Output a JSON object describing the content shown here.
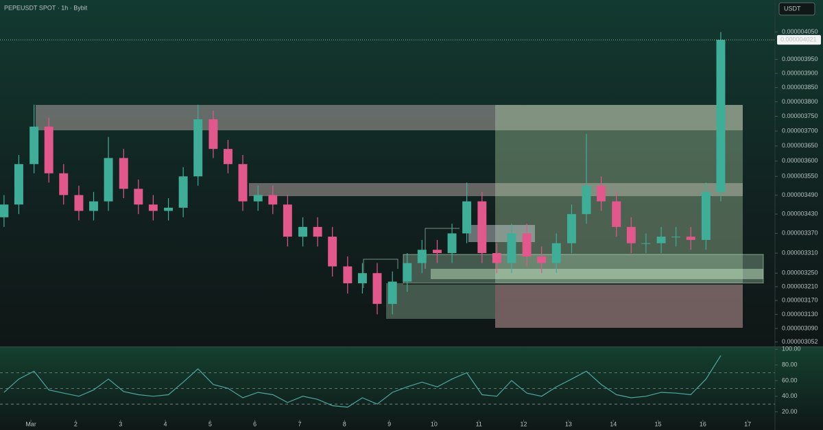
{
  "chart_data": [
    {
      "type": "candlestick",
      "title": "PEPEUSDT SPOT · 1h · Bybit",
      "unit": "USDT",
      "x": [
        0.4,
        0.73,
        1.07,
        1.4,
        1.73,
        2.07,
        2.4,
        2.73,
        3.07,
        3.4,
        3.73,
        4.07,
        4.4,
        4.73,
        5.07,
        5.4,
        5.73,
        6.07,
        6.4,
        6.73,
        7.07,
        7.4,
        7.73,
        8.07,
        8.4,
        8.73,
        9.07,
        9.4,
        9.73,
        10.07,
        10.4,
        10.73,
        11.07,
        11.4,
        11.73,
        12.07,
        12.4,
        12.73,
        13.07,
        13.4,
        13.73,
        14.07,
        14.4,
        14.73,
        15.07,
        15.4,
        15.73,
        16.07,
        16.4
      ],
      "open": [
        3.42e-06,
        3.46e-06,
        3.59e-06,
        3.715e-06,
        3.56e-06,
        3.49e-06,
        3.44e-06,
        3.47e-06,
        3.61e-06,
        3.51e-06,
        3.46e-06,
        3.44e-06,
        3.45e-06,
        3.55e-06,
        3.74e-06,
        3.64e-06,
        3.59e-06,
        3.47e-06,
        3.49e-06,
        3.46e-06,
        3.36e-06,
        3.39e-06,
        3.36e-06,
        3.27e-06,
        3.22e-06,
        3.25e-06,
        3.16e-06,
        3.225e-06,
        3.28e-06,
        3.32e-06,
        3.31e-06,
        3.37e-06,
        3.47e-06,
        3.31e-06,
        3.28e-06,
        3.37e-06,
        3.3e-06,
        3.28e-06,
        3.34e-06,
        3.43e-06,
        3.52e-06,
        3.47e-06,
        3.39e-06,
        3.34e-06,
        3.34e-06,
        3.36e-06,
        3.36e-06,
        3.35e-06,
        3.5e-06
      ],
      "high": [
        3.49e-06,
        3.62e-06,
        3.79e-06,
        3.745e-06,
        3.59e-06,
        3.52e-06,
        3.5e-06,
        3.68e-06,
        3.64e-06,
        3.54e-06,
        3.49e-06,
        3.48e-06,
        3.58e-06,
        3.79e-06,
        3.77e-06,
        3.67e-06,
        3.62e-06,
        3.52e-06,
        3.52e-06,
        3.49e-06,
        3.42e-06,
        3.42e-06,
        3.39e-06,
        3.3e-06,
        3.28e-06,
        3.28e-06,
        3.255e-06,
        3.31e-06,
        3.35e-06,
        3.35e-06,
        3.4e-06,
        3.53e-06,
        3.5e-06,
        3.34e-06,
        3.4e-06,
        3.4e-06,
        3.33e-06,
        3.37e-06,
        3.46e-06,
        3.69e-06,
        3.55e-06,
        3.5e-06,
        3.42e-06,
        3.37e-06,
        3.39e-06,
        3.39e-06,
        3.39e-06,
        3.53e-06,
        4.05e-06
      ],
      "low": [
        3.39e-06,
        3.43e-06,
        3.56e-06,
        3.53e-06,
        3.46e-06,
        3.41e-06,
        3.41e-06,
        3.44e-06,
        3.48e-06,
        3.43e-06,
        3.41e-06,
        3.41e-06,
        3.42e-06,
        3.52e-06,
        3.61e-06,
        3.56e-06,
        3.44e-06,
        3.44e-06,
        3.43e-06,
        3.33e-06,
        3.33e-06,
        3.33e-06,
        3.24e-06,
        3.19e-06,
        3.19e-06,
        3.13e-06,
        3.13e-06,
        3.195e-06,
        3.25e-06,
        3.28e-06,
        3.28e-06,
        3.34e-06,
        3.28e-06,
        3.25e-06,
        3.25e-06,
        3.27e-06,
        3.25e-06,
        3.25e-06,
        3.31e-06,
        3.4e-06,
        3.44e-06,
        3.36e-06,
        3.31e-06,
        3.31e-06,
        3.31e-06,
        3.33e-06,
        3.32e-06,
        3.32e-06,
        3.47e-06
      ],
      "close": [
        3.46e-06,
        3.59e-06,
        3.715e-06,
        3.56e-06,
        3.49e-06,
        3.44e-06,
        3.47e-06,
        3.61e-06,
        3.51e-06,
        3.46e-06,
        3.44e-06,
        3.45e-06,
        3.55e-06,
        3.74e-06,
        3.64e-06,
        3.59e-06,
        3.47e-06,
        3.49e-06,
        3.46e-06,
        3.36e-06,
        3.39e-06,
        3.36e-06,
        3.27e-06,
        3.22e-06,
        3.25e-06,
        3.16e-06,
        3.225e-06,
        3.28e-06,
        3.32e-06,
        3.31e-06,
        3.37e-06,
        3.47e-06,
        3.31e-06,
        3.28e-06,
        3.37e-06,
        3.3e-06,
        3.28e-06,
        3.34e-06,
        3.43e-06,
        3.52e-06,
        3.47e-06,
        3.39e-06,
        3.34e-06,
        3.34e-06,
        3.36e-06,
        3.36e-06,
        3.35e-06,
        3.5e-06,
        4.021e-06
      ],
      "up_color": "#3fae98",
      "down_color": "#e2588c",
      "last_price": {
        "value": 4.021e-06,
        "label": "0.000004021"
      },
      "xlim": [
        0.31,
        17.61
      ],
      "ylim": [
        3.04e-06,
        4.17e-06
      ],
      "log_scale": true,
      "yticks": [
        {
          "value": 3.052e-06,
          "label": "0.000003052"
        },
        {
          "value": 3.09e-06,
          "label": "0.000003090"
        },
        {
          "value": 3.13e-06,
          "label": "0.000003130"
        },
        {
          "value": 3.17e-06,
          "label": "0.000003170"
        },
        {
          "value": 3.21e-06,
          "label": "0.000003210"
        },
        {
          "value": 3.25e-06,
          "label": "0.000003250"
        },
        {
          "value": 3.31e-06,
          "label": "0.000003310"
        },
        {
          "value": 3.37e-06,
          "label": "0.000003370"
        },
        {
          "value": 3.43e-06,
          "label": "0.000003430"
        },
        {
          "value": 3.49e-06,
          "label": "0.000003490"
        },
        {
          "value": 3.55e-06,
          "label": "0.000003550"
        },
        {
          "value": 3.6e-06,
          "label": "0.000003600"
        },
        {
          "value": 3.65e-06,
          "label": "0.000003650"
        },
        {
          "value": 3.7e-06,
          "label": "0.000003700"
        },
        {
          "value": 3.75e-06,
          "label": "0.000003750"
        },
        {
          "value": 3.8e-06,
          "label": "0.000003800"
        },
        {
          "value": 3.85e-06,
          "label": "0.000003850"
        },
        {
          "value": 3.9e-06,
          "label": "0.000003900"
        },
        {
          "value": 3.95e-06,
          "label": "0.000003950"
        },
        {
          "value": 4.05e-06,
          "label": "0.000004050"
        }
      ]
    },
    {
      "type": "line",
      "color": "#4fa7a2",
      "x": [
        0.4,
        0.73,
        1.07,
        1.4,
        1.73,
        2.07,
        2.4,
        2.73,
        3.07,
        3.4,
        3.73,
        4.07,
        4.4,
        4.73,
        5.07,
        5.4,
        5.73,
        6.07,
        6.4,
        6.73,
        7.07,
        7.4,
        7.73,
        8.07,
        8.4,
        8.73,
        9.07,
        9.4,
        9.73,
        10.07,
        10.4,
        10.73,
        11.07,
        11.4,
        11.73,
        12.07,
        12.4,
        12.73,
        13.07,
        13.4,
        13.73,
        14.07,
        14.4,
        14.73,
        15.07,
        15.4,
        15.73,
        16.07,
        16.4
      ],
      "values": [
        45,
        62,
        72,
        48,
        44,
        40,
        48,
        62,
        46,
        42,
        40,
        42,
        58,
        75,
        55,
        50,
        38,
        45,
        42,
        32,
        40,
        36,
        28,
        26,
        38,
        30,
        45,
        52,
        58,
        52,
        62,
        70,
        42,
        40,
        60,
        44,
        40,
        52,
        62,
        72,
        55,
        42,
        38,
        40,
        45,
        44,
        42,
        62,
        92
      ],
      "reference_lines": [
        70,
        50,
        30
      ],
      "xlim": [
        0.31,
        17.61
      ],
      "ylim": [
        10,
        102
      ],
      "yticks": [
        {
          "value": 20,
          "label": "20.00"
        },
        {
          "value": 40,
          "label": "40.00"
        },
        {
          "value": 60,
          "label": "60.00"
        },
        {
          "value": 80,
          "label": "80.00"
        },
        {
          "value": 100,
          "label": "100.00"
        }
      ],
      "xticks": [
        {
          "value": 1,
          "label": "Mar"
        },
        2,
        3,
        4,
        5,
        6,
        7,
        8,
        9,
        10,
        11,
        12,
        13,
        14,
        15,
        16,
        17
      ]
    }
  ]
}
